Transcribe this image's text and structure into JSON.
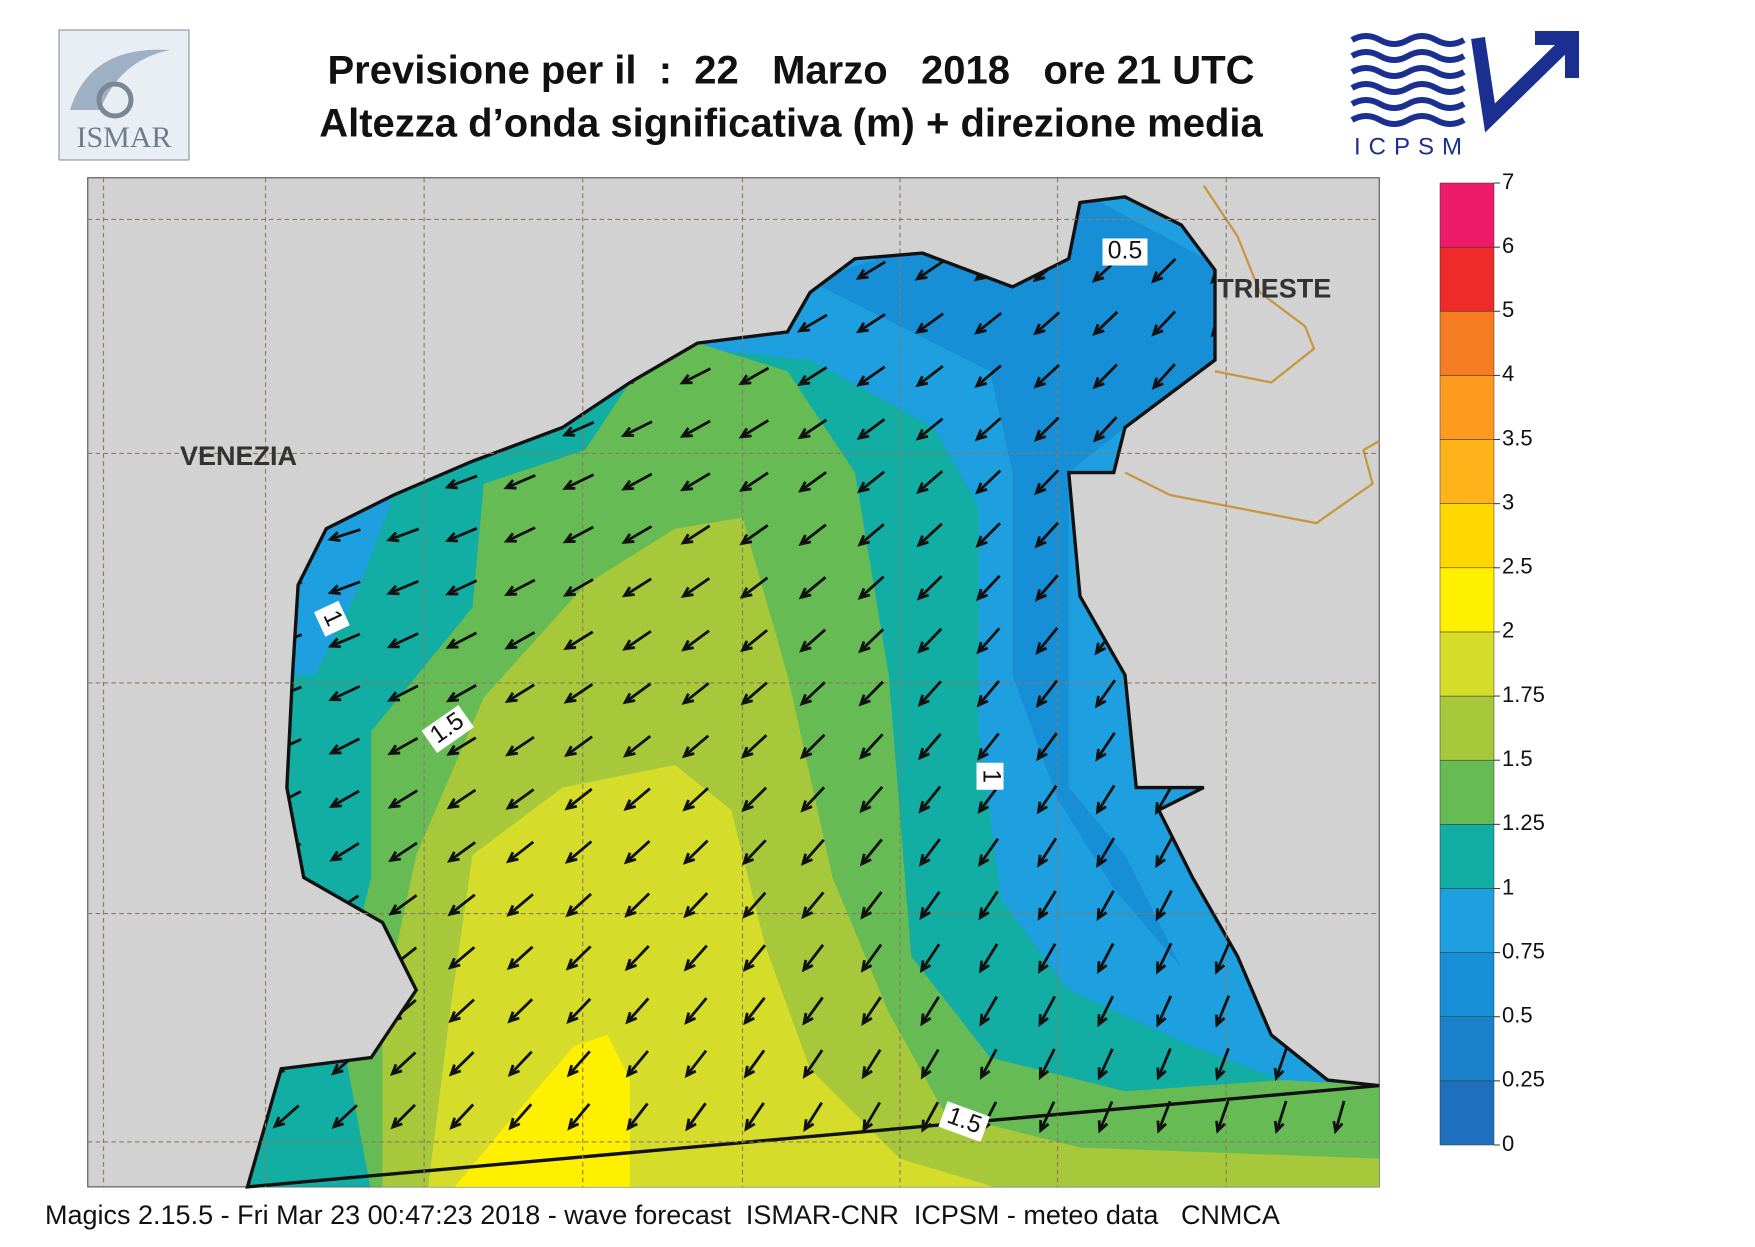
{
  "header": {
    "title_line1": "Previsione per il  :  22   Marzo   2018   ore 21 UTC",
    "title_line2": "Altezza d’onda significativa (m) + direzione media"
  },
  "logos": {
    "left": "ISMAR",
    "right": "ICPSM"
  },
  "map_labels": {
    "cities": [
      "VENEZIA",
      "TRIESTE"
    ],
    "contours": [
      0.5,
      1,
      1.5,
      1,
      1.5
    ]
  },
  "legend": {
    "levels": [
      0,
      0.25,
      0.5,
      0.75,
      1,
      1.25,
      1.5,
      1.75,
      2,
      2.5,
      3,
      3.5,
      4,
      5,
      6,
      7
    ],
    "colors": [
      "#1f6fbf",
      "#1a82cc",
      "#168fd6",
      "#1ea0e0",
      "#12ada3",
      "#66bb55",
      "#a6c83a",
      "#d6dc2a",
      "#fff000",
      "#ffd800",
      "#ffb31a",
      "#ff9a20",
      "#f57c20",
      "#ee2a2a",
      "#ee1a6a"
    ]
  },
  "footer": "Magics 2.15.5 - Fri Mar 23 00:47:23 2018 - wave forecast  ISMAR-CNR  ICPSM - meteo data   CNMCA"
}
